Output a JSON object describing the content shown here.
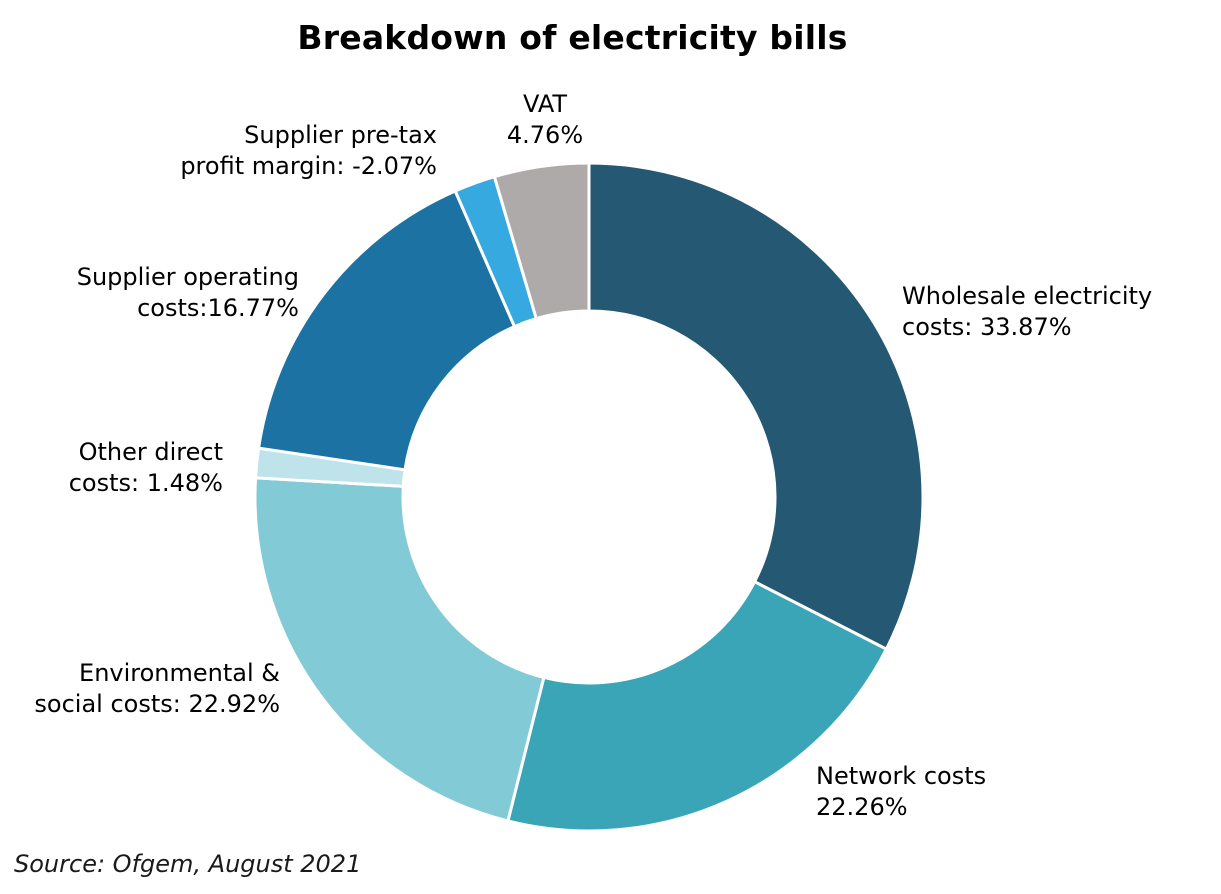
{
  "chart_data": {
    "type": "pie",
    "title": "Breakdown of electricity bills",
    "slices": [
      {
        "label_lines": [
          "Wholesale electricity",
          "costs: 33.87%"
        ],
        "value": 33.87,
        "color": "#245873"
      },
      {
        "label_lines": [
          "Network costs",
          "22.26%"
        ],
        "value": 22.26,
        "color": "#3ba5b8"
      },
      {
        "label_lines": [
          "Environmental &",
          "social costs: 22.92%"
        ],
        "value": 22.92,
        "color": "#82cad6"
      },
      {
        "label_lines": [
          "Other direct",
          "costs: 1.48%"
        ],
        "value": 1.48,
        "color": "#bfe3ea"
      },
      {
        "label_lines": [
          "Supplier operating",
          "costs:16.77%"
        ],
        "value": 16.77,
        "color": "#1b72a3"
      },
      {
        "label_lines": [
          "Supplier pre-tax",
          "profit margin: -2.07%"
        ],
        "value": -2.07,
        "color": "#36a9e1"
      },
      {
        "label_lines": [
          "VAT",
          "4.76%"
        ],
        "value": 4.76,
        "color": "#aeaaaa"
      }
    ]
  },
  "footer": {
    "source": "Source: Ofgem, August 2021"
  }
}
